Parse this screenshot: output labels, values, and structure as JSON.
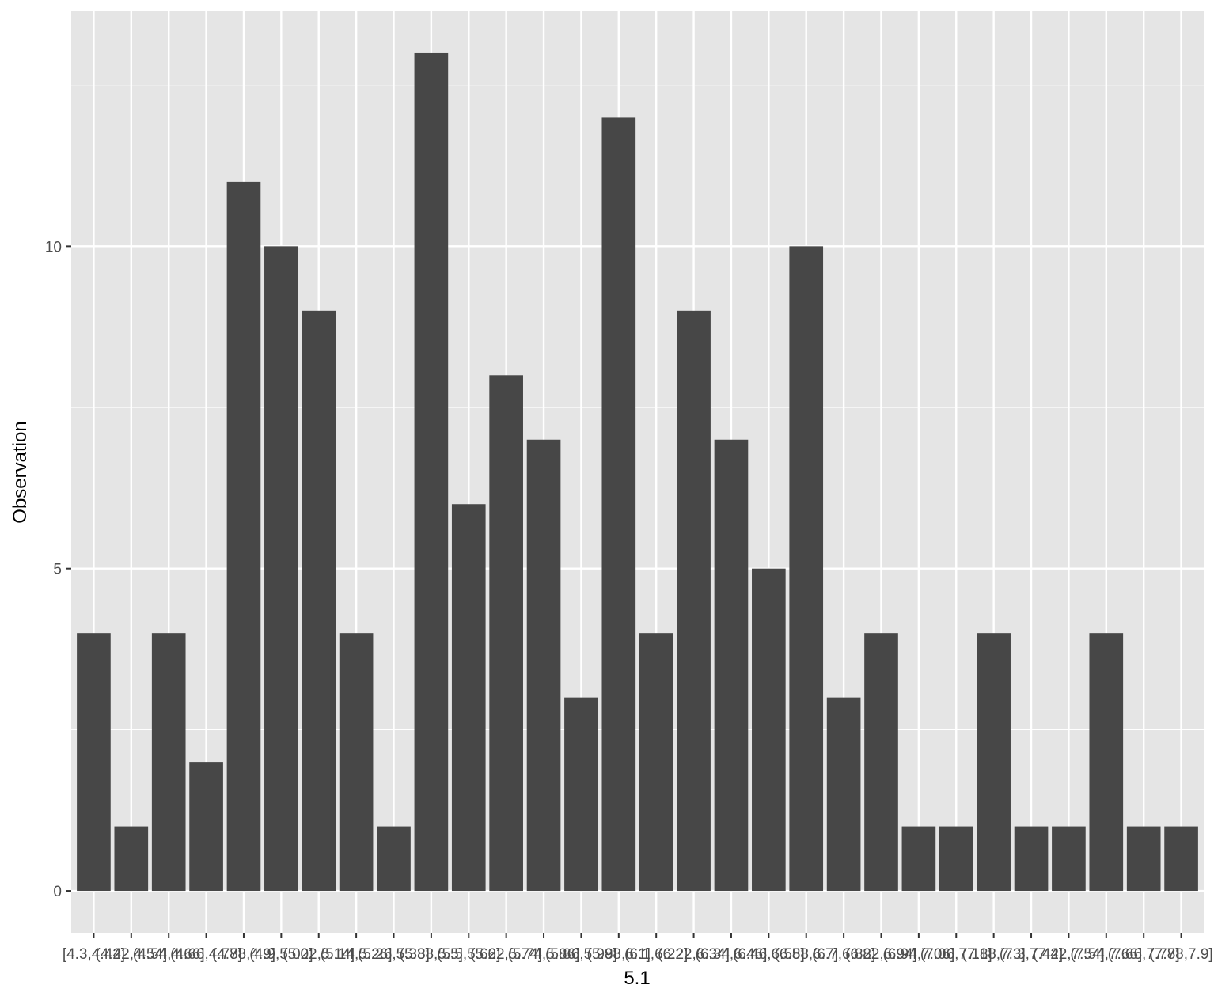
{
  "chart_data": {
    "type": "bar",
    "xlabel": "5.1",
    "ylabel": "Observation",
    "categories": [
      "[4.3,4.42]",
      "(4.42,4.54]",
      "(4.54,4.66]",
      "(4.66,4.78]",
      "(4.78,4.9]",
      "(4.9,5.02]",
      "(5.02,5.14]",
      "(5.14,5.26]",
      "(5.26,5.38]",
      "(5.38,5.5]",
      "(5.5,5.62]",
      "(5.62,5.74]",
      "(5.74,5.86]",
      "(5.86,5.98]",
      "(5.98,6.1]",
      "(6.1,6.22]",
      "(6.22,6.34]",
      "(6.34,6.46]",
      "(6.46,6.58]",
      "(6.58,6.7]",
      "(6.7,6.82]",
      "(6.82,6.94]",
      "(6.94,7.06]",
      "(7.06,7.18]",
      "(7.18,7.3]",
      "(7.3,7.42]",
      "(7.42,7.54]",
      "(7.54,7.66]",
      "(7.66,7.78]",
      "(7.78,7.9]"
    ],
    "values": [
      4,
      1,
      4,
      2,
      11,
      10,
      9,
      4,
      1,
      13,
      6,
      8,
      7,
      3,
      12,
      4,
      9,
      7,
      5,
      10,
      3,
      4,
      1,
      1,
      4,
      1,
      1,
      4,
      1,
      1
    ],
    "y_ticks": [
      0,
      5,
      10
    ],
    "ylim": [
      -0.65,
      13.65
    ],
    "grid": true,
    "legend": "none",
    "colors": {
      "bar": "#474747",
      "panel": "#e5e5e5",
      "grid": "#ffffff"
    }
  }
}
